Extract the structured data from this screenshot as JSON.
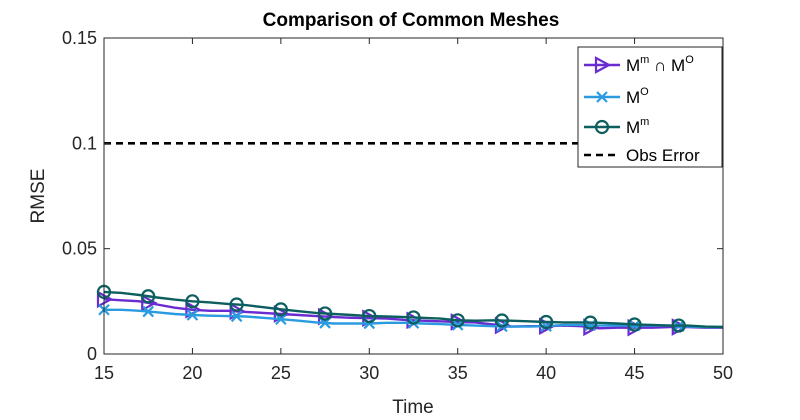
{
  "chart_data": {
    "type": "line",
    "title": "Comparison of Common Meshes",
    "xlabel": "Time",
    "ylabel": "RMSE",
    "xlim": [
      15,
      50
    ],
    "ylim": [
      0,
      0.15
    ],
    "xticks": [
      15,
      20,
      25,
      30,
      35,
      40,
      45,
      50
    ],
    "xtick_labels": [
      "15",
      "20",
      "25",
      "30",
      "35",
      "40",
      "45",
      "50"
    ],
    "yticks": [
      0,
      0.05,
      0.1,
      0.15
    ],
    "ytick_labels": [
      "0",
      "0.05",
      "0.1",
      "0.15"
    ],
    "grid": false,
    "legend_position": "top-right",
    "series": [
      {
        "name": "M^m ∩ M^O",
        "legend": {
          "base1": "M",
          "sup1": "m",
          "op": " ∩ ",
          "base2": "M",
          "sup2": "O"
        },
        "color": "#6a2bd1",
        "marker": "triangle-right",
        "x": [
          15,
          16,
          17,
          18,
          19,
          20,
          21,
          22,
          23,
          24,
          25,
          26,
          27,
          28,
          29,
          30,
          31,
          32,
          33,
          34,
          35,
          36,
          37,
          38,
          39,
          40,
          41,
          42,
          43,
          44,
          45,
          46,
          47,
          48,
          49,
          50
        ],
        "values": [
          0.026,
          0.0255,
          0.025,
          0.0235,
          0.022,
          0.021,
          0.0205,
          0.0205,
          0.02,
          0.0195,
          0.019,
          0.0185,
          0.018,
          0.0175,
          0.0172,
          0.017,
          0.0168,
          0.0162,
          0.0158,
          0.0155,
          0.0152,
          0.015,
          0.014,
          0.013,
          0.0132,
          0.0132,
          0.0135,
          0.0132,
          0.0122,
          0.0125,
          0.0125,
          0.0125,
          0.0128,
          0.0128,
          0.0125,
          0.0125
        ]
      },
      {
        "name": "M^O",
        "legend": {
          "base1": "M",
          "sup1": "O"
        },
        "color": "#2b9be0",
        "marker": "x",
        "x": [
          15,
          16,
          17,
          18,
          19,
          20,
          21,
          22,
          23,
          24,
          25,
          26,
          27,
          28,
          29,
          30,
          31,
          32,
          33,
          34,
          35,
          36,
          37,
          38,
          39,
          40,
          41,
          42,
          43,
          44,
          45,
          46,
          47,
          48,
          49,
          50
        ],
        "values": [
          0.021,
          0.021,
          0.0205,
          0.0198,
          0.019,
          0.0185,
          0.0182,
          0.018,
          0.0178,
          0.0172,
          0.0165,
          0.0158,
          0.015,
          0.0145,
          0.0145,
          0.0145,
          0.0148,
          0.0148,
          0.0145,
          0.0142,
          0.0138,
          0.0135,
          0.0132,
          0.013,
          0.013,
          0.0132,
          0.0138,
          0.0138,
          0.0135,
          0.0135,
          0.0135,
          0.0135,
          0.0135,
          0.013,
          0.0128,
          0.0128
        ]
      },
      {
        "name": "M^m",
        "legend": {
          "base1": "M",
          "sup1": "m"
        },
        "color": "#0d5f5f",
        "marker": "circle",
        "x": [
          15,
          16,
          17,
          18,
          19,
          20,
          21,
          22,
          23,
          24,
          25,
          26,
          27,
          28,
          29,
          30,
          31,
          32,
          33,
          34,
          35,
          36,
          37,
          38,
          39,
          40,
          41,
          42,
          43,
          44,
          45,
          46,
          47,
          48,
          49,
          50
        ],
        "values": [
          0.0295,
          0.029,
          0.028,
          0.0268,
          0.0258,
          0.025,
          0.0245,
          0.0238,
          0.0232,
          0.0222,
          0.0212,
          0.0203,
          0.0195,
          0.019,
          0.0185,
          0.018,
          0.0178,
          0.0175,
          0.0172,
          0.0168,
          0.016,
          0.0158,
          0.016,
          0.0158,
          0.0155,
          0.0152,
          0.015,
          0.015,
          0.0148,
          0.0145,
          0.014,
          0.0138,
          0.0135,
          0.0135,
          0.013,
          0.0128
        ]
      },
      {
        "name": "Obs Error",
        "legend": {
          "base1": "Obs Error"
        },
        "color": "#000000",
        "marker": "none",
        "dash": true,
        "x": [
          15,
          50
        ],
        "values": [
          0.1,
          0.1
        ]
      }
    ]
  }
}
